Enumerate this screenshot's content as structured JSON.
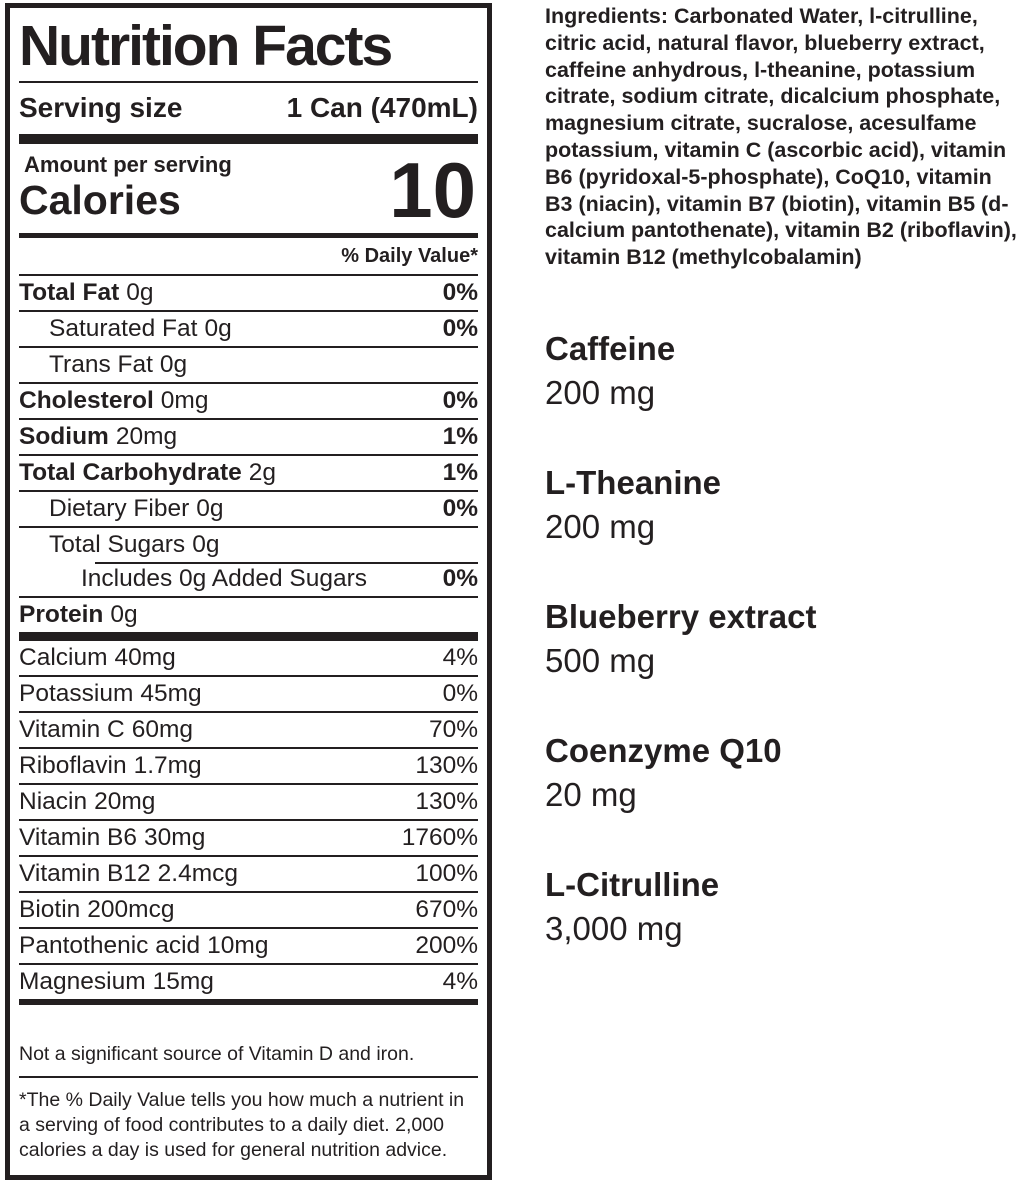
{
  "label": {
    "title": "Nutrition Facts",
    "serving_size_label": "Serving size",
    "serving_size_value": "1 Can (470mL)",
    "amount_per_serving": "Amount per serving",
    "calories_label": "Calories",
    "calories_value": "10",
    "daily_value_header": "% Daily Value*",
    "main_rows": [
      {
        "name": "Total Fat",
        "amount": "0g",
        "dv": "0%"
      },
      {
        "name": "Saturated Fat",
        "amount": "0g",
        "dv": "0%"
      },
      {
        "name": "Trans Fat",
        "amount": "0g",
        "dv": ""
      },
      {
        "name": "Cholesterol",
        "amount": "0mg",
        "dv": "0%"
      },
      {
        "name": "Sodium",
        "amount": "20mg",
        "dv": "1%"
      },
      {
        "name": "Total Carbohydrate",
        "amount": "2g",
        "dv": "1%"
      },
      {
        "name": "Dietary Fiber",
        "amount": "0g",
        "dv": "0%"
      },
      {
        "name": "Total Sugars",
        "amount": "0g",
        "dv": ""
      },
      {
        "name": "Includes 0g Added Sugars",
        "amount": "",
        "dv": "0%"
      },
      {
        "name": "Protein",
        "amount": "0g",
        "dv": ""
      }
    ],
    "micro_rows": [
      {
        "name": "Calcium",
        "amount": "40mg",
        "dv": "4%"
      },
      {
        "name": "Potassium",
        "amount": "45mg",
        "dv": "0%"
      },
      {
        "name": "Vitamin C",
        "amount": "60mg",
        "dv": "70%"
      },
      {
        "name": "Riboflavin",
        "amount": "1.7mg",
        "dv": "130%"
      },
      {
        "name": "Niacin",
        "amount": "20mg",
        "dv": "130%"
      },
      {
        "name": "Vitamin B6",
        "amount": "30mg",
        "dv": "1760%"
      },
      {
        "name": "Vitamin B12",
        "amount": "2.4mcg",
        "dv": "100%"
      },
      {
        "name": "Biotin",
        "amount": "200mcg",
        "dv": "670%"
      },
      {
        "name": "Pantothenic acid",
        "amount": "10mg",
        "dv": "200%"
      },
      {
        "name": "Magnesium",
        "amount": "15mg",
        "dv": "4%"
      }
    ],
    "not_significant": "Not a significant source of Vitamin D and iron.",
    "footnote": "*The % Daily Value tells you how much a nutrient in a serving of food contributes to a daily diet. 2,000 calories a day is used for general nutrition advice."
  },
  "right_panel": {
    "ingredients": "Ingredients: Carbonated Water, l-citrulline, citric acid, natural flavor, blueberry extract, caffeine anhydrous, l-theanine, potassium citrate, sodium citrate, dicalcium phosphate, magnesium citrate, sucralose, acesulfame potassium, vitamin C (ascorbic acid), vitamin B6 (pyridoxal-5-phosphate), CoQ10, vitamin B3 (niacin), vitamin B7 (biotin), vitamin B5 (d-calcium pantothenate), vitamin B2 (riboflavin), vitamin B12 (methylcobalamin)",
    "supplements": [
      {
        "name": "Caffeine",
        "amount": "200 mg"
      },
      {
        "name": "L-Theanine",
        "amount": "200 mg"
      },
      {
        "name": "Blueberry extract",
        "amount": "500 mg"
      },
      {
        "name": "Coenzyme Q10",
        "amount": "20 mg"
      },
      {
        "name": "L-Citrulline",
        "amount": "3,000 mg"
      }
    ]
  },
  "colors": {
    "ink": "#231f20",
    "background": "#ffffff"
  }
}
